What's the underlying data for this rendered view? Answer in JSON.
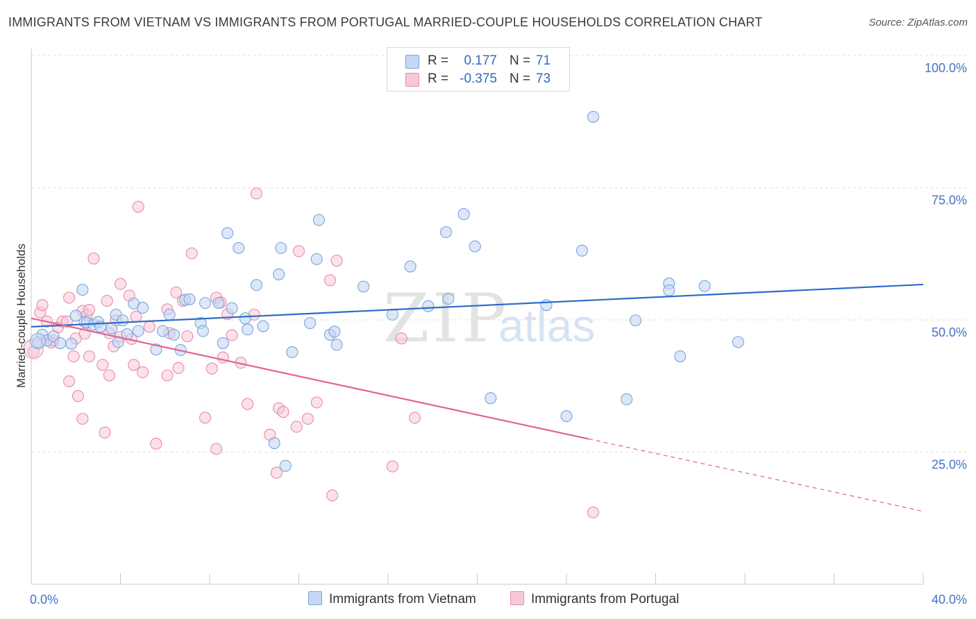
{
  "title": "IMMIGRANTS FROM VIETNAM VS IMMIGRANTS FROM PORTUGAL MARRIED-COUPLE HOUSEHOLDS CORRELATION CHART",
  "source": "Source: ZipAtlas.com",
  "legend": {
    "vietnam": {
      "r_label": "R =",
      "r_value": "0.177",
      "n_label": "N =",
      "n_value": "71"
    },
    "portugal": {
      "r_label": "R =",
      "r_value": "-0.375",
      "n_label": "N =",
      "n_value": "73"
    }
  },
  "bottom_legend": {
    "vietnam": "Immigrants from Vietnam",
    "portugal": "Immigrants from Portugal"
  },
  "watermark": {
    "zip": "ZIP",
    "atlas": "atlas"
  },
  "colors": {
    "vietnam_fill": "#c5d7f2",
    "vietnam_stroke": "#7aa3dd",
    "vietnam_line": "#2c6bc9",
    "portugal_fill": "#f7c9d8",
    "portugal_stroke": "#e88aa8",
    "portugal_line": "#e0648f",
    "axis_text": "#4472c4",
    "grid": "#e0e0e0"
  },
  "chart_data": {
    "type": "scatter",
    "title": "IMMIGRANTS FROM VIETNAM VS IMMIGRANTS FROM PORTUGAL MARRIED-COUPLE HOUSEHOLDS CORRELATION CHART",
    "xlabel": "",
    "ylabel": "Married-couple Households",
    "x_tick_labels": [
      "0.0%",
      "40.0%"
    ],
    "y_tick_labels": [
      "25.0%",
      "50.0%",
      "75.0%",
      "100.0%"
    ],
    "y_ticks": [
      25,
      50,
      75,
      100
    ],
    "xlim": [
      0,
      40
    ],
    "ylim": [
      0,
      102
    ],
    "grid": true,
    "series": [
      {
        "name": "Immigrants from Vietnam",
        "R": 0.177,
        "N": 71,
        "trend": {
          "x0": 0,
          "y0": 48.7,
          "x1": 40,
          "y1": 56.7,
          "dashed_from": null
        },
        "points": [
          [
            0.3,
            45.8
          ],
          [
            0.5,
            47.2
          ],
          [
            0.7,
            46.1
          ],
          [
            1.0,
            46.9
          ],
          [
            1.3,
            45.6
          ],
          [
            1.8,
            45.5
          ],
          [
            2.0,
            50.8
          ],
          [
            2.3,
            55.7
          ],
          [
            2.4,
            49.6
          ],
          [
            2.5,
            49.5
          ],
          [
            2.8,
            49.1
          ],
          [
            3.0,
            49.6
          ],
          [
            3.1,
            48.7
          ],
          [
            3.6,
            48.4
          ],
          [
            3.8,
            51.0
          ],
          [
            3.9,
            45.8
          ],
          [
            4.1,
            49.9
          ],
          [
            4.3,
            47.3
          ],
          [
            4.6,
            53.1
          ],
          [
            4.8,
            47.9
          ],
          [
            5.0,
            52.3
          ],
          [
            5.6,
            44.4
          ],
          [
            5.9,
            47.9
          ],
          [
            6.2,
            51.0
          ],
          [
            6.4,
            47.2
          ],
          [
            6.7,
            44.3
          ],
          [
            6.9,
            53.8
          ],
          [
            7.1,
            53.9
          ],
          [
            7.6,
            49.4
          ],
          [
            7.7,
            47.9
          ],
          [
            7.8,
            53.2
          ],
          [
            8.4,
            53.2
          ],
          [
            8.6,
            45.6
          ],
          [
            8.8,
            66.4
          ],
          [
            9.0,
            52.2
          ],
          [
            9.3,
            63.6
          ],
          [
            9.6,
            50.3
          ],
          [
            9.7,
            48.2
          ],
          [
            10.1,
            56.6
          ],
          [
            10.4,
            48.8
          ],
          [
            10.9,
            26.7
          ],
          [
            11.1,
            58.6
          ],
          [
            11.2,
            63.6
          ],
          [
            11.4,
            22.4
          ],
          [
            11.7,
            43.9
          ],
          [
            12.5,
            49.4
          ],
          [
            12.8,
            61.5
          ],
          [
            12.9,
            68.9
          ],
          [
            13.4,
            47.2
          ],
          [
            13.6,
            47.8
          ],
          [
            13.7,
            45.3
          ],
          [
            14.9,
            56.3
          ],
          [
            16.2,
            51.0
          ],
          [
            17.0,
            60.1
          ],
          [
            17.8,
            52.6
          ],
          [
            18.6,
            66.6
          ],
          [
            18.7,
            54.0
          ],
          [
            19.4,
            70.0
          ],
          [
            19.9,
            63.9
          ],
          [
            20.6,
            35.2
          ],
          [
            23.1,
            52.8
          ],
          [
            24.0,
            31.8
          ],
          [
            24.7,
            63.1
          ],
          [
            25.2,
            88.4
          ],
          [
            26.7,
            35.0
          ],
          [
            27.1,
            49.9
          ],
          [
            28.6,
            56.9
          ],
          [
            28.6,
            55.6
          ],
          [
            29.1,
            43.1
          ],
          [
            30.2,
            56.4
          ],
          [
            31.7,
            45.8
          ]
        ]
      },
      {
        "name": "Immigrants from Portugal",
        "R": -0.375,
        "N": 73,
        "trend": {
          "x0": 0,
          "y0": 50.3,
          "x1": 40,
          "y1": 13.8,
          "dashed_from": 25.0
        },
        "points": [
          [
            0.1,
            44.0
          ],
          [
            0.4,
            51.4
          ],
          [
            0.5,
            52.8
          ],
          [
            0.7,
            49.7
          ],
          [
            0.9,
            45.7
          ],
          [
            1.0,
            46.1
          ],
          [
            1.2,
            48.6
          ],
          [
            1.4,
            49.7
          ],
          [
            1.6,
            49.7
          ],
          [
            1.7,
            54.2
          ],
          [
            1.7,
            38.4
          ],
          [
            1.9,
            43.1
          ],
          [
            2.0,
            46.5
          ],
          [
            2.1,
            35.6
          ],
          [
            2.3,
            51.7
          ],
          [
            2.3,
            31.3
          ],
          [
            2.4,
            47.4
          ],
          [
            2.5,
            50.9
          ],
          [
            2.6,
            51.9
          ],
          [
            2.6,
            43.1
          ],
          [
            2.8,
            61.6
          ],
          [
            3.2,
            41.5
          ],
          [
            3.3,
            28.7
          ],
          [
            3.4,
            53.6
          ],
          [
            3.5,
            39.5
          ],
          [
            3.5,
            47.5
          ],
          [
            3.7,
            45.0
          ],
          [
            3.8,
            49.9
          ],
          [
            4.0,
            46.8
          ],
          [
            4.0,
            56.8
          ],
          [
            4.4,
            54.6
          ],
          [
            4.5,
            46.4
          ],
          [
            4.6,
            41.5
          ],
          [
            4.7,
            50.6
          ],
          [
            4.8,
            71.4
          ],
          [
            5.0,
            40.1
          ],
          [
            5.3,
            48.7
          ],
          [
            5.6,
            26.6
          ],
          [
            6.1,
            52.0
          ],
          [
            6.1,
            39.5
          ],
          [
            6.2,
            47.5
          ],
          [
            6.5,
            55.2
          ],
          [
            6.6,
            40.9
          ],
          [
            6.8,
            53.6
          ],
          [
            7.0,
            46.9
          ],
          [
            7.2,
            62.6
          ],
          [
            7.8,
            31.5
          ],
          [
            8.1,
            40.8
          ],
          [
            8.3,
            54.2
          ],
          [
            8.3,
            25.6
          ],
          [
            8.5,
            53.3
          ],
          [
            8.6,
            42.9
          ],
          [
            8.8,
            51.1
          ],
          [
            9.0,
            47.1
          ],
          [
            9.4,
            41.9
          ],
          [
            9.7,
            34.1
          ],
          [
            10.1,
            73.9
          ],
          [
            10.7,
            28.3
          ],
          [
            11.0,
            21.1
          ],
          [
            11.1,
            33.3
          ],
          [
            11.3,
            32.6
          ],
          [
            11.9,
            29.8
          ],
          [
            12.0,
            63.0
          ],
          [
            12.4,
            31.3
          ],
          [
            12.8,
            34.4
          ],
          [
            13.4,
            57.5
          ],
          [
            13.5,
            16.8
          ],
          [
            13.7,
            61.2
          ],
          [
            16.2,
            22.3
          ],
          [
            16.6,
            46.5
          ],
          [
            17.2,
            31.5
          ],
          [
            25.2,
            13.6
          ],
          [
            10.0,
            51.0
          ]
        ]
      }
    ]
  }
}
